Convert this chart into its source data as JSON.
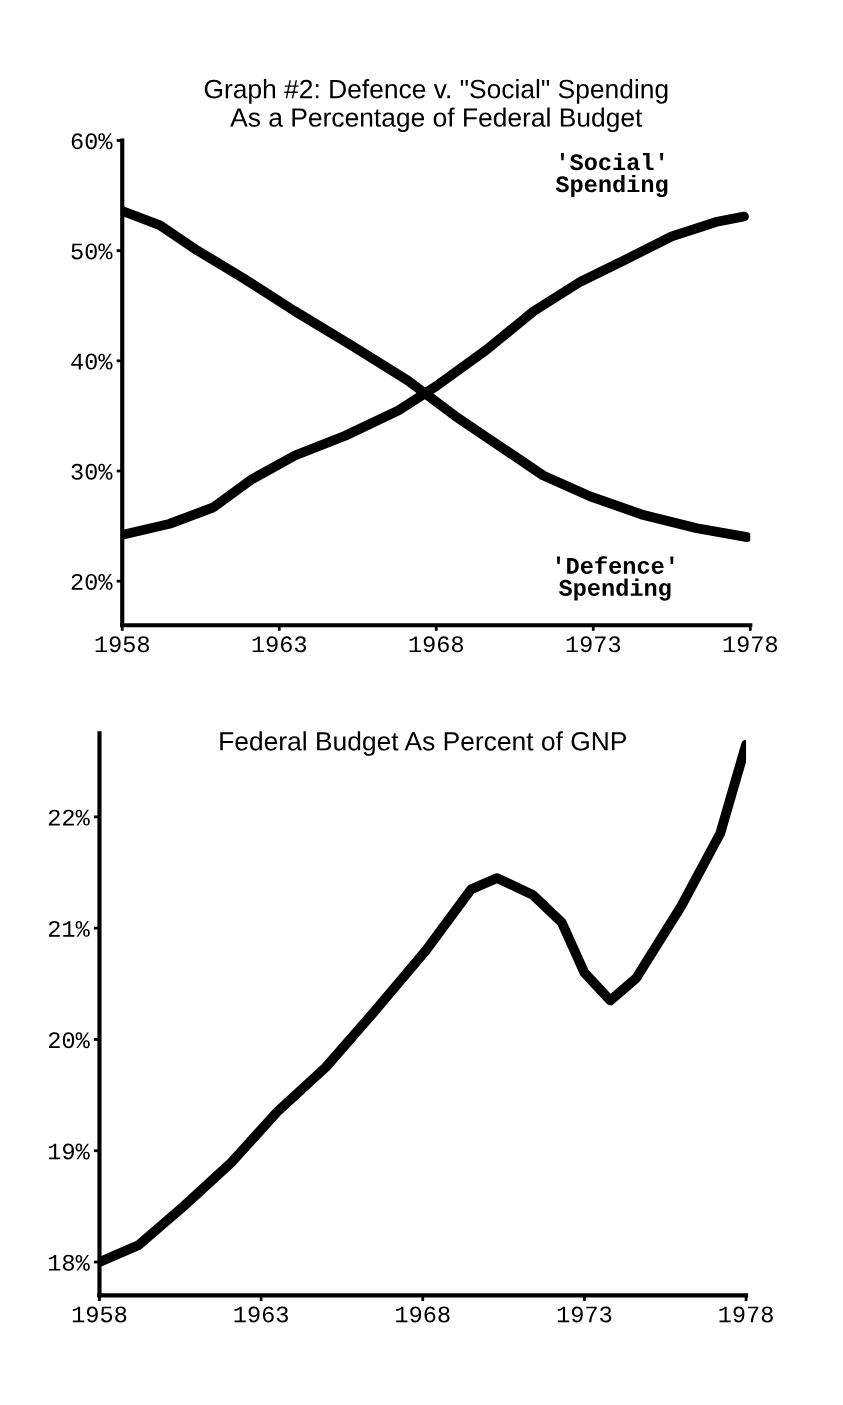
{
  "chart_data": [
    {
      "type": "line",
      "title": "Graph #2: Defence v. \"Social\" Spending\nAs a Percentage of Federal Budget",
      "xlim": [
        1958,
        1978
      ],
      "xticks": [
        1958,
        1963,
        1968,
        1973,
        1978
      ],
      "ylim": [
        16,
        60
      ],
      "yticks": [
        {
          "value": 20,
          "label": "20%"
        },
        {
          "value": 30,
          "label": "30%"
        },
        {
          "value": 40,
          "label": "40%"
        },
        {
          "value": 50,
          "label": "50%"
        },
        {
          "value": 60,
          "label": "60%"
        }
      ],
      "grid": false,
      "legend": false,
      "marker": "none",
      "line_style": "solid",
      "series": [
        {
          "name": "'Social'\nSpending",
          "color": "#000000",
          "x": [
            1958,
            1959.5,
            1960.9,
            1962.1,
            1963.5,
            1965.1,
            1966.8,
            1968,
            1969.6,
            1971.1,
            1972.6,
            1973.9,
            1975.5,
            1976.9,
            1977.8
          ],
          "values": [
            24.2,
            25.2,
            26.7,
            29.2,
            31.4,
            33.2,
            35.5,
            37.7,
            41.0,
            44.5,
            47.2,
            49.0,
            51.3,
            52.6,
            53.1
          ]
        },
        {
          "name": "'Defence'\nSpending",
          "color": "#000000",
          "x": [
            1958,
            1959.2,
            1960.4,
            1961.8,
            1963.5,
            1965.3,
            1967.1,
            1968.6,
            1970,
            1971.4,
            1972.9,
            1974.6,
            1976.3,
            1977.9
          ],
          "values": [
            53.6,
            52.3,
            50.0,
            47.6,
            44.5,
            41.4,
            38.2,
            35.0,
            32.3,
            29.6,
            27.7,
            26.0,
            24.8,
            24.0
          ]
        }
      ]
    },
    {
      "type": "line",
      "title": "Federal Budget As Percent of GNP",
      "xlim": [
        1958,
        1978
      ],
      "xticks": [
        1958,
        1963,
        1968,
        1973,
        1978
      ],
      "ylim": [
        17.7,
        22.75
      ],
      "yticks": [
        {
          "value": 18,
          "label": "18%"
        },
        {
          "value": 19,
          "label": "19%"
        },
        {
          "value": 20,
          "label": "20%"
        },
        {
          "value": 21,
          "label": "21%"
        },
        {
          "value": 22,
          "label": "22%"
        }
      ],
      "grid": false,
      "legend": false,
      "marker": "none",
      "line_style": "solid",
      "series": [
        {
          "color": "#000000",
          "x": [
            1958,
            1959.2,
            1960.6,
            1962.1,
            1963.5,
            1965,
            1966.5,
            1968.1,
            1969.5,
            1970.3,
            1971.4,
            1972.3,
            1973,
            1973.8,
            1974.6,
            1976,
            1977.2,
            1978
          ],
          "values": [
            18.0,
            18.15,
            18.5,
            18.9,
            19.35,
            19.75,
            20.25,
            20.8,
            21.35,
            21.45,
            21.3,
            21.05,
            20.6,
            20.35,
            20.55,
            21.2,
            21.85,
            22.65
          ]
        }
      ]
    }
  ]
}
